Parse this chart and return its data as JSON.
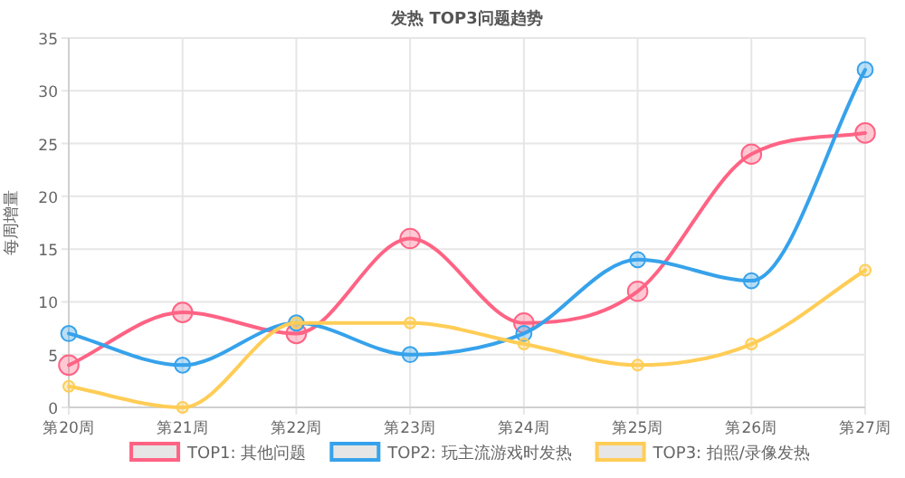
{
  "chart_data": {
    "type": "line",
    "title": "发热 TOP3问题趋势",
    "ylabel": "每周增量",
    "categories": [
      "第20周",
      "第21周",
      "第22周",
      "第23周",
      "第24周",
      "第25周",
      "第26周",
      "第27周"
    ],
    "series": [
      {
        "name": "TOP1: 其他问题",
        "color": "#ff6384",
        "values": [
          4,
          9,
          7,
          16,
          8,
          11,
          24,
          26
        ]
      },
      {
        "name": "TOP2: 玩主流游戏时发热",
        "color": "#36a2eb",
        "values": [
          7,
          4,
          8,
          5,
          7,
          14,
          12,
          32
        ]
      },
      {
        "name": "TOP3: 拍照/录像发热",
        "color": "#ffcd56",
        "values": [
          2,
          0,
          8,
          8,
          6,
          4,
          6,
          13
        ]
      }
    ],
    "ylim": [
      0,
      35
    ],
    "yticks": [
      0,
      5,
      10,
      15,
      20,
      25,
      30,
      35
    ],
    "grid": true,
    "legend": "bottom",
    "marker": "circle",
    "line_style": "solid"
  }
}
